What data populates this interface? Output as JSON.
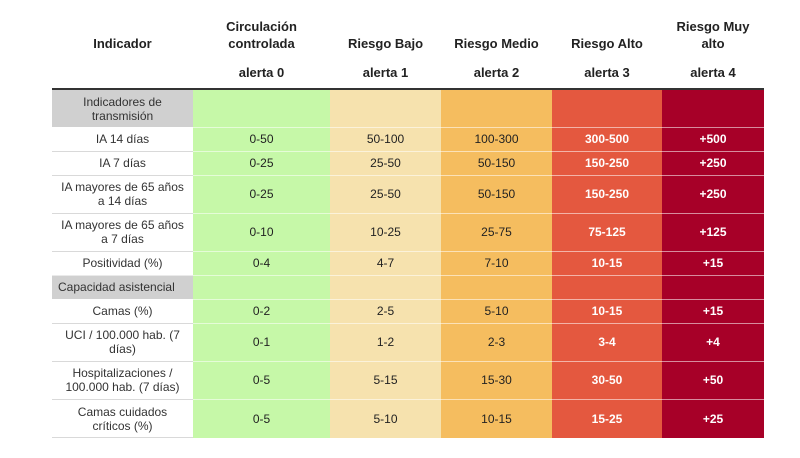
{
  "header": {
    "indicator_label": "Indicador",
    "columns": [
      {
        "name": "Circulación controlada",
        "alert": "alerta 0",
        "color": "#c6f8a8"
      },
      {
        "name": "Riesgo Bajo",
        "alert": "alerta 1",
        "color": "#f6e2ae"
      },
      {
        "name": "Riesgo Medio",
        "alert": "alerta 2",
        "color": "#f5bd5f"
      },
      {
        "name": "Riesgo Alto",
        "alert": "alerta 3",
        "color": "#e4583f"
      },
      {
        "name": "Riesgo Muy alto",
        "alert": "alerta 4",
        "color": "#a70028"
      }
    ]
  },
  "sections": {
    "transmission": "Indicadores de transmisión",
    "capacity": "Capacidad asistencial"
  },
  "rows": [
    {
      "label": "IA 14 días",
      "values": [
        "0-50",
        "50-100",
        "100-300",
        "300-500",
        "+500"
      ]
    },
    {
      "label": "IA 7 días",
      "values": [
        "0-25",
        "25-50",
        "50-150",
        "150-250",
        "+250"
      ]
    },
    {
      "label": "IA mayores de 65 años a 14 días",
      "values": [
        "0-25",
        "25-50",
        "50-150",
        "150-250",
        "+250"
      ]
    },
    {
      "label": "IA mayores de 65 años a 7 días",
      "values": [
        "0-10",
        "10-25",
        "25-75",
        "75-125",
        "+125"
      ]
    },
    {
      "label": "Positividad (%)",
      "values": [
        "0-4",
        "4-7",
        "7-10",
        "10-15",
        "+15"
      ]
    },
    {
      "label": "Camas (%)",
      "values": [
        "0-2",
        "2-5",
        "5-10",
        "10-15",
        "+15"
      ]
    },
    {
      "label": "UCI / 100.000 hab. (7 días)",
      "values": [
        "0-1",
        "1-2",
        "2-3",
        "3-4",
        "+4"
      ]
    },
    {
      "label": "Hospitalizaciones / 100.000 hab. (7 días)",
      "values": [
        "0-5",
        "5-15",
        "15-30",
        "30-50",
        "+50"
      ]
    },
    {
      "label": "Camas cuidados críticos (%)",
      "values": [
        "0-5",
        "5-10",
        "10-15",
        "15-25",
        "+25"
      ]
    }
  ]
}
